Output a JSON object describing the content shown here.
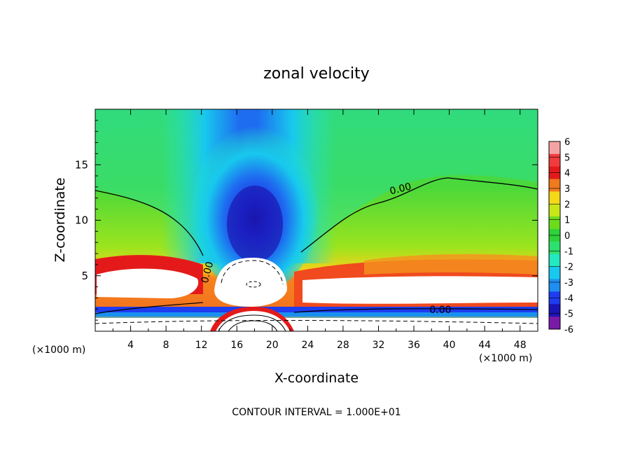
{
  "chart_data": {
    "type": "heatmap",
    "title": "zonal velocity",
    "xlabel": "X-coordinate",
    "ylabel": "Z-coordinate",
    "x_unit": "(×1000 m)",
    "y_unit": "(×1000 m)",
    "xlim": [
      0,
      50
    ],
    "ylim": [
      0,
      20
    ],
    "x_ticks": [
      4,
      8,
      12,
      16,
      20,
      24,
      28,
      32,
      36,
      40,
      44,
      48
    ],
    "y_ticks": [
      5,
      10,
      15
    ],
    "contour_interval_text": "CONTOUR INTERVAL = 1.000E+01",
    "contour_labels": [
      {
        "text": "0.00",
        "x": 34.5,
        "y": 12.8
      },
      {
        "text": "0.00",
        "x": 12.7,
        "y": 5.3
      },
      {
        "text": "0.00",
        "x": 39,
        "y": 1.9
      }
    ],
    "colorbar": {
      "ticks": [
        6,
        5,
        4,
        3,
        2,
        1,
        0,
        -1,
        -2,
        -3,
        -4,
        -5,
        -6
      ],
      "colors": [
        "#f4a3a3",
        "#f03c3c",
        "#e41a1a",
        "#f07a1e",
        "#f5d81a",
        "#c8e61a",
        "#6bdc1c",
        "#2ed23a",
        "#2ee06e",
        "#23e8c0",
        "#18c8ee",
        "#1e8ef0",
        "#1e3cf0",
        "#1a14b4",
        "#7a1aa8"
      ]
    }
  }
}
